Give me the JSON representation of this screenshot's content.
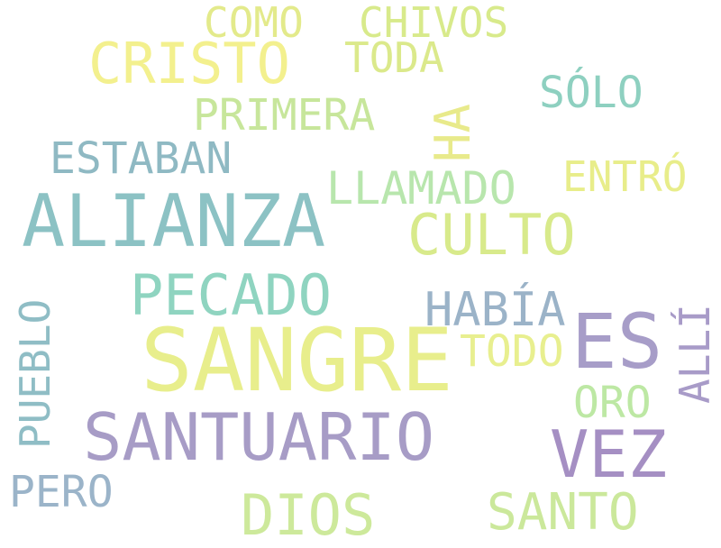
{
  "words": [
    {
      "id": "como",
      "text": "COMO",
      "color": "#e3ea8b",
      "orientation": "horizontal"
    },
    {
      "id": "chivos",
      "text": "CHIVOS",
      "color": "#d8ea8b",
      "orientation": "horizontal"
    },
    {
      "id": "cristo",
      "text": "CRISTO",
      "color": "#f3f08e",
      "orientation": "horizontal"
    },
    {
      "id": "toda",
      "text": "TODA",
      "color": "#dbe98b",
      "orientation": "horizontal"
    },
    {
      "id": "solo",
      "text": "SÓLO",
      "color": "#8ed0c0",
      "orientation": "horizontal"
    },
    {
      "id": "primera",
      "text": "PRIMERA",
      "color": "#c7e69b",
      "orientation": "horizontal"
    },
    {
      "id": "ha",
      "text": "HA",
      "color": "#e8ea8b",
      "orientation": "vertical"
    },
    {
      "id": "estaban",
      "text": "ESTABAN",
      "color": "#8fb9c3",
      "orientation": "horizontal"
    },
    {
      "id": "entro",
      "text": "ENTRÓ",
      "color": "#e8ed8a",
      "orientation": "horizontal"
    },
    {
      "id": "llamado",
      "text": "LLAMADO",
      "color": "#b8e6ad",
      "orientation": "horizontal"
    },
    {
      "id": "alianza",
      "text": "ALIANZA",
      "color": "#8cc2c4",
      "orientation": "horizontal"
    },
    {
      "id": "culto",
      "text": "CULTO",
      "color": "#d8ea8b",
      "orientation": "horizontal"
    },
    {
      "id": "pecado",
      "text": "PECADO",
      "color": "#8fd4c0",
      "orientation": "horizontal"
    },
    {
      "id": "pueblo",
      "text": "PUEBLO",
      "color": "#8fbdc5",
      "orientation": "vertical"
    },
    {
      "id": "habia",
      "text": "HABÍA",
      "color": "#9bb3c8",
      "orientation": "horizontal"
    },
    {
      "id": "alli",
      "text": "ALLÍ",
      "color": "#a89bc8",
      "orientation": "vertical"
    },
    {
      "id": "es",
      "text": "ES",
      "color": "#a79dc8",
      "orientation": "horizontal"
    },
    {
      "id": "sangre",
      "text": "SANGRE",
      "color": "#e8ee8c",
      "orientation": "horizontal"
    },
    {
      "id": "todo",
      "text": "TODO",
      "color": "#e8ef8f",
      "orientation": "horizontal"
    },
    {
      "id": "oro",
      "text": "ORO",
      "color": "#bde8a4",
      "orientation": "horizontal"
    },
    {
      "id": "santuario",
      "text": "SANTUARIO",
      "color": "#a79cc6",
      "orientation": "horizontal"
    },
    {
      "id": "vez",
      "text": "VEZ",
      "color": "#a58fc3",
      "orientation": "horizontal"
    },
    {
      "id": "pero",
      "text": "PERO",
      "color": "#9bb4c9",
      "orientation": "horizontal"
    },
    {
      "id": "dios",
      "text": "DIOS",
      "color": "#cde99b",
      "orientation": "horizontal"
    },
    {
      "id": "santo",
      "text": "SANTO",
      "color": "#cbe89b",
      "orientation": "horizontal"
    }
  ]
}
